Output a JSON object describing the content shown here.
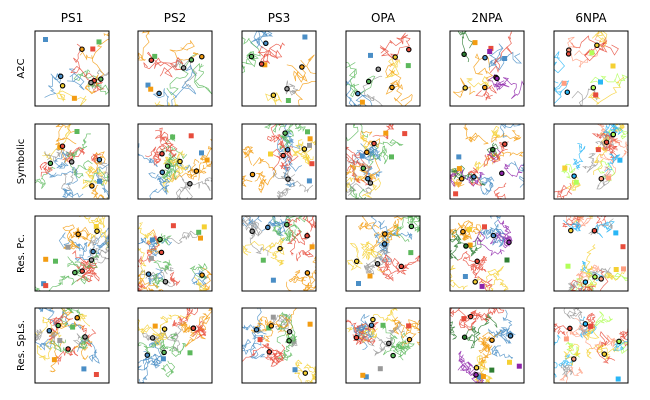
{
  "chart_data": {
    "type": "scatter",
    "title": "",
    "columns": [
      "PS1",
      "PS2",
      "PS3",
      "OPA",
      "2NPA",
      "6NPA"
    ],
    "rows": [
      "A2C",
      "Symbolic",
      "Res. Pc.",
      "Res. SpLs."
    ],
    "grid": false,
    "legend": "none",
    "axis_ticks": "none",
    "colors": {
      "blue": "#4a8ec6",
      "green": "#5cb85c",
      "orange": "#f39c12",
      "red": "#e74c3c",
      "gray": "#999999",
      "yellow": "#f5d033",
      "darkgreen": "#2e7d32",
      "purple": "#8e24aa",
      "cyan": "#29b6f6",
      "salmon": "#ff9e80",
      "lime": "#b2ff59"
    },
    "column_palettes": {
      "PS1": [
        "blue",
        "green",
        "orange",
        "red",
        "gray",
        "yellow"
      ],
      "PS2": [
        "blue",
        "green",
        "orange",
        "red",
        "gray",
        "yellow"
      ],
      "PS3": [
        "blue",
        "green",
        "orange",
        "red",
        "gray",
        "yellow"
      ],
      "OPA": [
        "blue",
        "green",
        "orange",
        "red",
        "gray",
        "yellow"
      ],
      "2NPA": [
        "blue",
        "orange",
        "red",
        "purple",
        "darkgreen",
        "yellow"
      ],
      "6NPA": [
        "cyan",
        "salmon",
        "red",
        "yellow",
        "lime",
        "gray"
      ]
    },
    "marker_style": "black-ring"
  }
}
